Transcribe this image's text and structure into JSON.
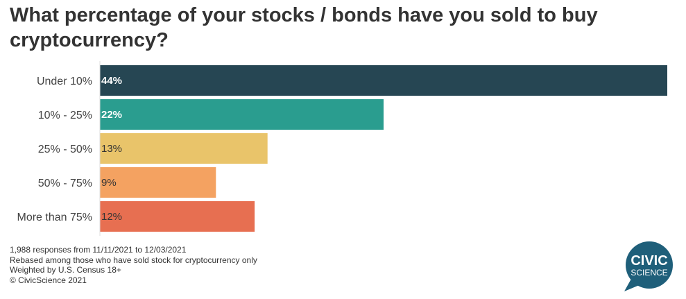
{
  "title": "What percentage of your stocks / bonds have you sold to buy cryptocurrency?",
  "notes": [
    "1,988 responses from 11/11/2021 to 12/03/2021",
    "Rebased among those who have sold stock for cryptocurrency only",
    "Weighted by U.S. Census 18+",
    "© CivicScience 2021"
  ],
  "logo": {
    "line1": "CIVIC",
    "line2": "SCIENCE",
    "color": "#1f5f7a"
  },
  "chart_data": {
    "type": "bar",
    "orientation": "horizontal",
    "title": "What percentage of your stocks / bonds have you sold to buy cryptocurrency?",
    "categories": [
      "Under 10%",
      "10% - 25%",
      "25% - 50%",
      "50% - 75%",
      "More than 75%"
    ],
    "values": [
      44,
      22,
      13,
      9,
      12
    ],
    "value_labels": [
      "44%",
      "22%",
      "13%",
      "9%",
      "12%"
    ],
    "colors": [
      "#264653",
      "#2a9d8f",
      "#e9c46a",
      "#f4a261",
      "#e76f51"
    ],
    "label_colors": [
      "#ffffff",
      "#ffffff",
      "#333333",
      "#333333",
      "#333333"
    ],
    "xlabel": "",
    "ylabel": "",
    "xlim": [
      0,
      44
    ],
    "grid": false,
    "legend": "none"
  }
}
